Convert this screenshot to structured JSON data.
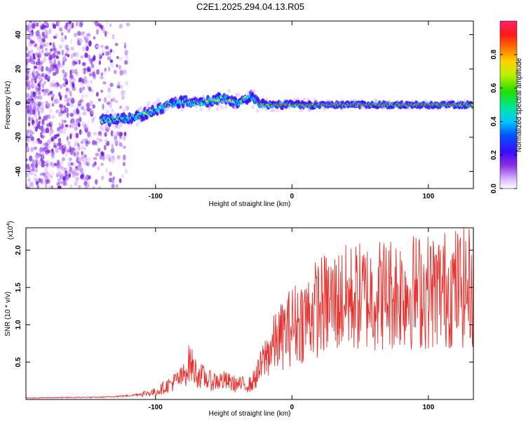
{
  "title": "C2E1.2025.294.04.13.R05",
  "chart_data": [
    {
      "type": "heatmap",
      "xlabel": "Height of straight line (km)",
      "ylabel": "Frequency (Hz)",
      "xlim": [
        -195,
        133
      ],
      "ylim": [
        -50,
        48
      ],
      "xticks": [
        -100,
        0,
        100
      ],
      "yticks": [
        -40,
        -20,
        0,
        20,
        40
      ],
      "colorbar": {
        "label": "Normalized spectral amplitude",
        "range": [
          0,
          1
        ],
        "ticks": [
          "0.0",
          "0.2",
          "0.4",
          "0.6",
          "0.8"
        ],
        "tick_values": [
          0.0,
          0.2,
          0.4,
          0.6,
          0.8
        ]
      },
      "ridge": {
        "x": [
          -135,
          -120,
          -110,
          -100,
          -90,
          -80,
          -70,
          -60,
          -50,
          -40,
          -30,
          -25,
          -20,
          0,
          50,
          100,
          133
        ],
        "freq": [
          -10,
          -9,
          -7,
          -4,
          -1,
          1,
          0,
          1,
          3,
          0,
          4,
          0,
          -1,
          -1,
          -1,
          -1,
          -1
        ]
      }
    },
    {
      "type": "line",
      "xlabel": "Height of straight line (km)",
      "ylabel": "SNR (10 * v/v)",
      "scale_label": "(x10",
      "scale_exp": "4",
      "xlim": [
        -195,
        133
      ],
      "ylim": [
        0,
        2.3
      ],
      "xticks": [
        -100,
        0,
        100
      ],
      "yticks": [
        0.5,
        1.0,
        1.5,
        2.0
      ],
      "ytick_labels": [
        "0.5",
        "1.0",
        "1.5",
        "2.0"
      ],
      "color": "#e8302c",
      "envelope": {
        "x": [
          -195,
          -140,
          -120,
          -100,
          -90,
          -80,
          -75,
          -70,
          -65,
          -60,
          -50,
          -40,
          -30,
          -25,
          -20,
          -15,
          -10,
          -5,
          0,
          10,
          20,
          30,
          40,
          60,
          80,
          100,
          120,
          133
        ],
        "y": [
          0.02,
          0.03,
          0.05,
          0.1,
          0.2,
          0.3,
          0.5,
          0.35,
          0.3,
          0.25,
          0.25,
          0.2,
          0.2,
          0.35,
          0.55,
          0.7,
          0.8,
          0.9,
          1.0,
          1.1,
          1.25,
          1.3,
          1.35,
          1.4,
          1.45,
          1.45,
          1.5,
          1.5
        ]
      }
    }
  ]
}
